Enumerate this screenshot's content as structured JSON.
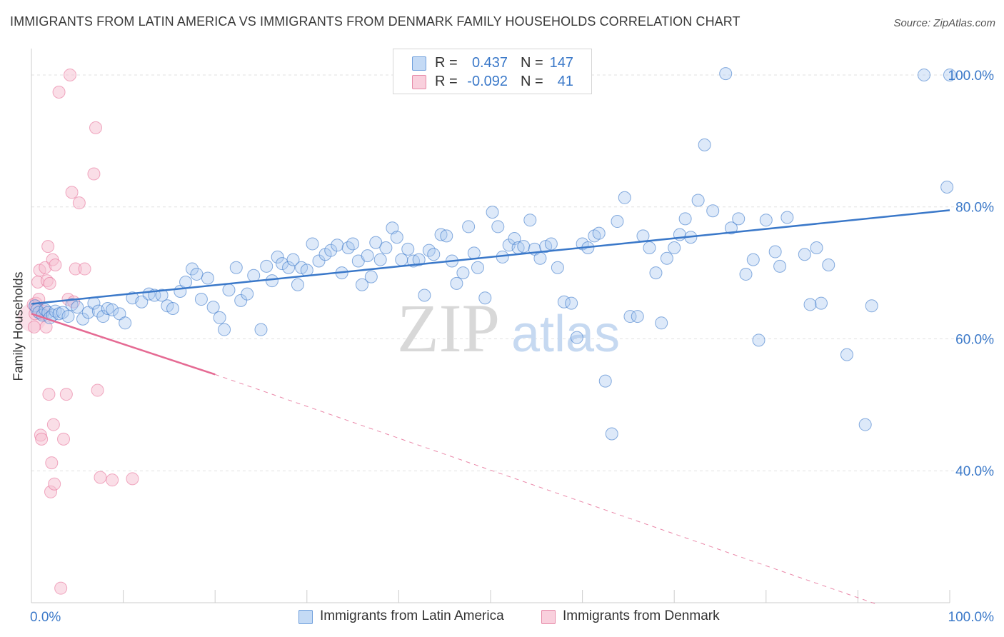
{
  "title": "IMMIGRANTS FROM LATIN AMERICA VS IMMIGRANTS FROM DENMARK FAMILY HOUSEHOLDS CORRELATION CHART",
  "source": "Source: ZipAtlas.com",
  "watermark": {
    "zip": "ZIP",
    "atlas": "atlas"
  },
  "legend": {
    "rows": [
      {
        "r_label": "R =",
        "r_value": "0.437",
        "n_label": "N =",
        "n_value": "147",
        "color": "#a8c8f0"
      },
      {
        "r_label": "R =",
        "r_value": "-0.092",
        "n_label": "N =",
        "n_value": "41",
        "color": "#f5b8c8"
      }
    ]
  },
  "bottom_legend": {
    "series1": "Immigrants from Latin America",
    "series2": "Immigrants from Denmark"
  },
  "colors": {
    "blue": "#3a78c9",
    "blue_fill": "#aac9ef",
    "pink": "#e56a93",
    "pink_fill": "#f6bdd0",
    "axis_text": "#3b79c9",
    "grid": "#e2e2e2"
  },
  "chart_data": {
    "type": "scatter",
    "xlabel": "",
    "ylabel": "Family Households",
    "xlim": [
      0,
      100
    ],
    "ylim": [
      20,
      104
    ],
    "x_tick_labels": [
      "0.0%",
      "100.0%"
    ],
    "y_ticks": [
      40,
      60,
      80,
      100
    ],
    "y_tick_labels": [
      "40.0%",
      "60.0%",
      "80.0%",
      "100.0%"
    ],
    "series": [
      {
        "name": "Immigrants from Latin America",
        "color": "#3a78c9",
        "trend": {
          "x0": 0,
          "y0": 65.3,
          "x1": 100,
          "y1": 79.5
        },
        "points": [
          [
            0.4,
            65.0
          ],
          [
            0.6,
            64.4
          ],
          [
            0.8,
            64.0
          ],
          [
            1.2,
            63.6
          ],
          [
            1.5,
            64.4
          ],
          [
            1.8,
            64.0
          ],
          [
            2.0,
            63.2
          ],
          [
            2.3,
            63.6
          ],
          [
            2.6,
            64.2
          ],
          [
            3.0,
            63.8
          ],
          [
            3.4,
            64.0
          ],
          [
            4.0,
            63.4
          ],
          [
            4.4,
            65.2
          ],
          [
            5.0,
            64.8
          ],
          [
            5.6,
            63.0
          ],
          [
            6.2,
            64.0
          ],
          [
            6.8,
            65.4
          ],
          [
            7.3,
            64.2
          ],
          [
            7.8,
            63.4
          ],
          [
            8.3,
            64.6
          ],
          [
            8.8,
            64.4
          ],
          [
            9.6,
            63.8
          ],
          [
            10.2,
            62.4
          ],
          [
            11.0,
            66.2
          ],
          [
            12.0,
            65.6
          ],
          [
            12.8,
            66.8
          ],
          [
            13.4,
            66.6
          ],
          [
            14.2,
            66.6
          ],
          [
            14.8,
            65.0
          ],
          [
            15.4,
            64.6
          ],
          [
            16.2,
            67.2
          ],
          [
            16.8,
            68.6
          ],
          [
            17.5,
            70.6
          ],
          [
            18.0,
            69.8
          ],
          [
            18.5,
            66.0
          ],
          [
            19.2,
            69.2
          ],
          [
            19.8,
            64.8
          ],
          [
            20.5,
            63.2
          ],
          [
            21.0,
            61.4
          ],
          [
            21.5,
            67.4
          ],
          [
            22.3,
            70.8
          ],
          [
            22.8,
            65.8
          ],
          [
            23.5,
            66.8
          ],
          [
            24.2,
            69.6
          ],
          [
            25.0,
            61.4
          ],
          [
            25.6,
            71.0
          ],
          [
            26.2,
            68.8
          ],
          [
            26.8,
            72.4
          ],
          [
            27.3,
            71.4
          ],
          [
            28.0,
            70.8
          ],
          [
            28.5,
            72.0
          ],
          [
            29.0,
            68.2
          ],
          [
            29.4,
            70.8
          ],
          [
            30.0,
            70.4
          ],
          [
            30.6,
            74.4
          ],
          [
            31.3,
            71.8
          ],
          [
            32.0,
            72.8
          ],
          [
            32.6,
            73.4
          ],
          [
            33.3,
            74.2
          ],
          [
            33.8,
            70.0
          ],
          [
            34.5,
            73.8
          ],
          [
            35.0,
            74.4
          ],
          [
            35.6,
            71.8
          ],
          [
            36.0,
            68.2
          ],
          [
            36.6,
            72.6
          ],
          [
            37.0,
            69.4
          ],
          [
            37.5,
            74.6
          ],
          [
            38.0,
            72.0
          ],
          [
            38.6,
            73.8
          ],
          [
            39.3,
            76.8
          ],
          [
            39.8,
            75.4
          ],
          [
            40.3,
            72.0
          ],
          [
            41.0,
            73.6
          ],
          [
            41.6,
            71.8
          ],
          [
            42.2,
            72.0
          ],
          [
            42.8,
            66.6
          ],
          [
            43.3,
            73.4
          ],
          [
            43.8,
            72.8
          ],
          [
            44.6,
            75.8
          ],
          [
            45.2,
            75.6
          ],
          [
            45.8,
            71.8
          ],
          [
            46.3,
            68.4
          ],
          [
            47.0,
            70.0
          ],
          [
            47.6,
            77.0
          ],
          [
            48.2,
            73.0
          ],
          [
            48.6,
            70.8
          ],
          [
            49.4,
            66.2
          ],
          [
            50.2,
            79.2
          ],
          [
            50.8,
            77.0
          ],
          [
            51.3,
            72.4
          ],
          [
            52.0,
            74.2
          ],
          [
            52.6,
            75.2
          ],
          [
            53.0,
            73.8
          ],
          [
            53.6,
            74.0
          ],
          [
            54.3,
            78.0
          ],
          [
            54.8,
            73.6
          ],
          [
            55.4,
            72.2
          ],
          [
            56.0,
            74.0
          ],
          [
            56.6,
            74.4
          ],
          [
            57.3,
            70.8
          ],
          [
            58.0,
            65.6
          ],
          [
            58.8,
            65.4
          ],
          [
            59.4,
            60.2
          ],
          [
            60.0,
            74.4
          ],
          [
            60.6,
            73.8
          ],
          [
            61.3,
            75.6
          ],
          [
            61.8,
            76.0
          ],
          [
            62.5,
            53.6
          ],
          [
            63.2,
            45.6
          ],
          [
            63.8,
            77.8
          ],
          [
            64.6,
            81.4
          ],
          [
            65.2,
            63.4
          ],
          [
            66.0,
            63.4
          ],
          [
            66.6,
            75.6
          ],
          [
            67.3,
            73.8
          ],
          [
            68.0,
            70.0
          ],
          [
            68.6,
            62.4
          ],
          [
            69.2,
            72.2
          ],
          [
            70.0,
            73.8
          ],
          [
            70.6,
            75.8
          ],
          [
            71.2,
            78.2
          ],
          [
            71.8,
            75.4
          ],
          [
            72.6,
            81.0
          ],
          [
            73.3,
            89.4
          ],
          [
            74.2,
            79.4
          ],
          [
            75.6,
            100.2
          ],
          [
            76.2,
            76.8
          ],
          [
            77.0,
            78.2
          ],
          [
            77.8,
            69.8
          ],
          [
            78.6,
            72.0
          ],
          [
            79.2,
            59.8
          ],
          [
            80.0,
            78.0
          ],
          [
            81.0,
            73.2
          ],
          [
            81.5,
            71.0
          ],
          [
            82.3,
            78.4
          ],
          [
            84.2,
            72.8
          ],
          [
            84.8,
            65.2
          ],
          [
            85.5,
            73.8
          ],
          [
            86.0,
            65.4
          ],
          [
            86.8,
            71.2
          ],
          [
            88.8,
            57.6
          ],
          [
            90.8,
            47.0
          ],
          [
            91.5,
            65.0
          ],
          [
            97.2,
            100.0
          ],
          [
            100.0,
            100.0
          ],
          [
            99.7,
            83.0
          ]
        ]
      },
      {
        "name": "Immigrants from Denmark",
        "color": "#e56a93",
        "trend": {
          "x0": 0,
          "y0": 63.8,
          "x1": 20,
          "y1": 54.6
        },
        "trend_dashed": {
          "x0": 20,
          "y0": 54.6,
          "x1": 92,
          "y1": 19.8
        },
        "points": [
          [
            0.2,
            65.2
          ],
          [
            0.3,
            61.8
          ],
          [
            0.4,
            63.8
          ],
          [
            0.5,
            65.4
          ],
          [
            0.6,
            64.8
          ],
          [
            0.7,
            68.6
          ],
          [
            0.8,
            66.0
          ],
          [
            0.9,
            70.4
          ],
          [
            1.0,
            45.4
          ],
          [
            1.1,
            44.8
          ],
          [
            1.2,
            63.8
          ],
          [
            1.4,
            64.2
          ],
          [
            1.5,
            70.8
          ],
          [
            1.6,
            61.8
          ],
          [
            1.7,
            68.8
          ],
          [
            1.8,
            74.0
          ],
          [
            1.9,
            51.6
          ],
          [
            2.0,
            68.4
          ],
          [
            2.1,
            36.8
          ],
          [
            2.2,
            41.2
          ],
          [
            2.3,
            72.0
          ],
          [
            2.4,
            47.0
          ],
          [
            2.5,
            38.0
          ],
          [
            2.6,
            71.2
          ],
          [
            3.0,
            97.4
          ],
          [
            3.2,
            22.2
          ],
          [
            3.5,
            44.8
          ],
          [
            3.8,
            51.6
          ],
          [
            4.0,
            66.0
          ],
          [
            4.2,
            100.0
          ],
          [
            4.4,
            82.2
          ],
          [
            4.6,
            65.6
          ],
          [
            4.8,
            70.6
          ],
          [
            5.2,
            80.6
          ],
          [
            5.8,
            70.6
          ],
          [
            6.8,
            85.0
          ],
          [
            7.0,
            92.0
          ],
          [
            7.2,
            52.2
          ],
          [
            7.5,
            39.0
          ],
          [
            8.8,
            38.6
          ],
          [
            11.0,
            38.8
          ]
        ]
      }
    ]
  }
}
